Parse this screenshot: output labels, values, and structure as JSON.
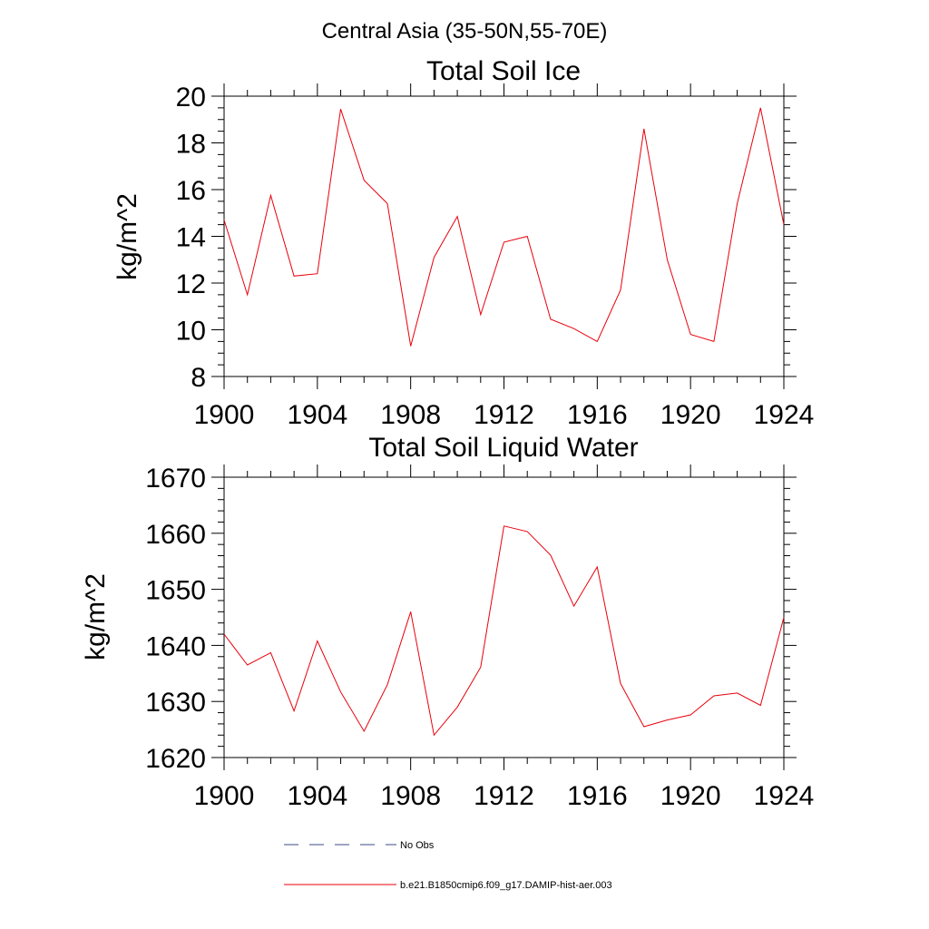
{
  "figure": {
    "suptitle": "Central Asia (35-50N,55-70E)"
  },
  "colors": {
    "axis": "#000000",
    "series": "#e8000b",
    "noobs": "#3b4a8a"
  },
  "chart_data": [
    {
      "type": "line",
      "title": "Total Soil Ice",
      "xlabel": "",
      "ylabel": "kg/m^2",
      "xlim": [
        1900,
        1924
      ],
      "ylim": [
        8,
        20
      ],
      "xticks": [
        1900,
        1904,
        1908,
        1912,
        1916,
        1920,
        1924
      ],
      "yticks": [
        8,
        10,
        12,
        14,
        16,
        18,
        20
      ],
      "x": [
        1900,
        1901,
        1902,
        1903,
        1904,
        1905,
        1906,
        1907,
        1908,
        1909,
        1910,
        1911,
        1912,
        1913,
        1914,
        1915,
        1916,
        1917,
        1918,
        1919,
        1920,
        1921,
        1922,
        1923,
        1924
      ],
      "series": [
        {
          "name": "b.e21.B1850cmip6.f09_g17.DAMIP-hist-aer.003",
          "values": [
            14.7,
            11.5,
            15.75,
            12.3,
            12.4,
            19.45,
            16.4,
            15.4,
            9.3,
            13.1,
            14.85,
            10.65,
            13.75,
            14.0,
            10.45,
            10.05,
            9.5,
            11.7,
            18.6,
            13.0,
            9.8,
            9.5,
            15.4,
            19.5,
            14.5
          ]
        }
      ]
    },
    {
      "type": "line",
      "title": "Total Soil Liquid Water",
      "xlabel": "",
      "ylabel": "kg/m^2",
      "xlim": [
        1900,
        1924
      ],
      "ylim": [
        1620,
        1670
      ],
      "xticks": [
        1900,
        1904,
        1908,
        1912,
        1916,
        1920,
        1924
      ],
      "yticks": [
        1620,
        1630,
        1640,
        1650,
        1660,
        1670
      ],
      "x": [
        1900,
        1901,
        1902,
        1903,
        1904,
        1905,
        1906,
        1907,
        1908,
        1909,
        1910,
        1911,
        1912,
        1913,
        1914,
        1915,
        1916,
        1917,
        1918,
        1919,
        1920,
        1921,
        1922,
        1923,
        1924
      ],
      "series": [
        {
          "name": "b.e21.B1850cmip6.f09_g17.DAMIP-hist-aer.003",
          "values": [
            1642,
            1636.5,
            1638.7,
            1628.3,
            1640.8,
            1631.7,
            1624.7,
            1633,
            1646,
            1624,
            1629,
            1636.1,
            1661.3,
            1660.3,
            1656.1,
            1647,
            1654,
            1633.2,
            1625.5,
            1626.7,
            1627.6,
            1631,
            1631.5,
            1629.3,
            1645
          ]
        }
      ]
    }
  ],
  "legend": {
    "items": [
      {
        "label": "No Obs",
        "style": "dashed"
      },
      {
        "label": "b.e21.B1850cmip6.f09_g17.DAMIP-hist-aer.003",
        "style": "solid"
      }
    ]
  }
}
